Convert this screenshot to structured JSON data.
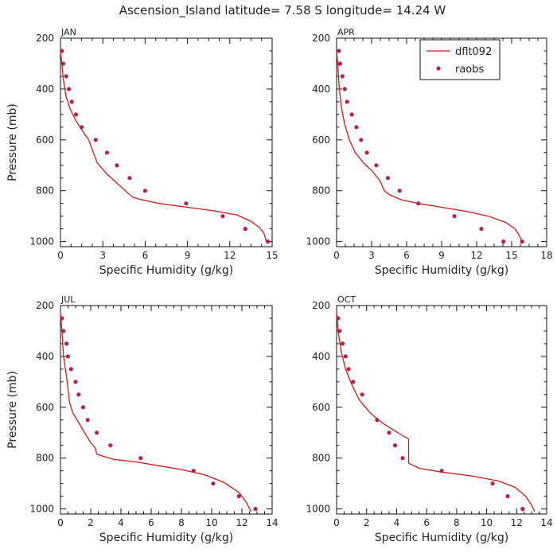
{
  "figure_title": "Ascension_Island  latitude= 7.58 S longitude= 14.24 W",
  "colors": {
    "model": "#d11a1a",
    "obs": "#b0244e",
    "axis": "#111111",
    "text": "#222222"
  },
  "legend": {
    "model_label": "dflt092",
    "obs_label": "raobs"
  },
  "chart_data": [
    {
      "type": "line",
      "title": "JAN",
      "xlabel": "Specific Humidity (g/kg)",
      "ylabel": "Pressure (mb)",
      "xlim": [
        0,
        15
      ],
      "ylim": [
        200,
        1020
      ],
      "xticks": [
        0,
        3,
        6,
        9,
        12,
        15
      ],
      "yticks": [
        200,
        400,
        600,
        800,
        1000
      ],
      "series": [
        {
          "name": "dflt092",
          "style": "line",
          "x": [
            0.0,
            0.1,
            0.2,
            0.4,
            0.7,
            1.1,
            1.5,
            2.0,
            2.6,
            3.3,
            4.0,
            4.6,
            5.1,
            5.7,
            7.0,
            9.0,
            11.0,
            12.5,
            13.5,
            14.1,
            14.4,
            14.6,
            14.8
          ],
          "y": [
            250,
            300,
            360,
            430,
            480,
            525,
            560,
            600,
            690,
            735,
            770,
            800,
            825,
            835,
            850,
            865,
            880,
            895,
            920,
            945,
            965,
            1000,
            1005
          ]
        },
        {
          "name": "raobs",
          "style": "points",
          "x": [
            0.1,
            0.2,
            0.4,
            0.6,
            0.8,
            1.1,
            1.5,
            2.5,
            3.3,
            4.0,
            4.9,
            6.0,
            8.9,
            11.5,
            13.1,
            14.7
          ],
          "y": [
            250,
            300,
            350,
            400,
            450,
            500,
            550,
            600,
            650,
            700,
            750,
            800,
            850,
            900,
            950,
            1000
          ]
        }
      ]
    },
    {
      "type": "line",
      "title": "APR",
      "xlabel": "Specific Humidity (g/kg)",
      "ylabel": "",
      "xlim": [
        0,
        18
      ],
      "ylim": [
        200,
        1020
      ],
      "xticks": [
        0,
        3,
        6,
        9,
        12,
        15,
        18
      ],
      "yticks": [
        200,
        400,
        600,
        800,
        1000
      ],
      "series": [
        {
          "name": "dflt092",
          "style": "line",
          "x": [
            0.0,
            0.1,
            0.2,
            0.4,
            0.7,
            1.1,
            1.6,
            2.3,
            3.0,
            3.7,
            4.1,
            4.5,
            5.5,
            7.0,
            9.0,
            11.0,
            13.0,
            14.5,
            15.3,
            15.7,
            15.9
          ],
          "y": [
            250,
            300,
            380,
            470,
            540,
            600,
            650,
            690,
            720,
            760,
            800,
            815,
            835,
            850,
            865,
            880,
            900,
            925,
            950,
            980,
            1005
          ]
        },
        {
          "name": "raobs",
          "style": "points",
          "x": [
            0.2,
            0.3,
            0.5,
            0.7,
            0.9,
            1.3,
            1.7,
            2.1,
            2.6,
            3.4,
            4.4,
            5.4,
            7.0,
            10.1,
            12.4,
            14.3,
            15.9
          ],
          "y": [
            250,
            300,
            350,
            400,
            450,
            500,
            550,
            600,
            650,
            700,
            750,
            800,
            850,
            900,
            950,
            1000,
            1000
          ]
        }
      ]
    },
    {
      "type": "line",
      "title": "JUL",
      "xlabel": "Specific Humidity (g/kg)",
      "ylabel": "Pressure (mb)",
      "xlim": [
        0,
        14
      ],
      "ylim": [
        200,
        1020
      ],
      "xticks": [
        0,
        2,
        4,
        6,
        8,
        10,
        12,
        14
      ],
      "yticks": [
        200,
        400,
        600,
        800,
        1000
      ],
      "series": [
        {
          "name": "dflt092",
          "style": "line",
          "x": [
            0.0,
            0.1,
            0.2,
            0.4,
            0.6,
            0.8,
            1.2,
            1.6,
            2.0,
            2.3,
            2.4,
            3.5,
            5.0,
            6.5,
            8.0,
            9.5,
            10.8,
            11.8,
            12.3,
            12.6
          ],
          "y": [
            230,
            300,
            400,
            480,
            580,
            620,
            660,
            700,
            740,
            760,
            785,
            805,
            815,
            830,
            845,
            865,
            895,
            935,
            975,
            1010
          ]
        },
        {
          "name": "raobs",
          "style": "points",
          "x": [
            0.1,
            0.2,
            0.4,
            0.5,
            0.7,
            1.0,
            1.2,
            1.5,
            1.8,
            2.4,
            3.3,
            5.3,
            8.8,
            10.1,
            11.8,
            12.9
          ],
          "y": [
            250,
            300,
            350,
            400,
            450,
            500,
            550,
            600,
            650,
            700,
            750,
            800,
            850,
            900,
            950,
            1000
          ]
        }
      ]
    },
    {
      "type": "line",
      "title": "OCT",
      "xlabel": "Specific Humidity (g/kg)",
      "ylabel": "",
      "xlim": [
        0,
        14
      ],
      "ylim": [
        200,
        1020
      ],
      "xticks": [
        0,
        2,
        4,
        6,
        8,
        10,
        12,
        14
      ],
      "yticks": [
        200,
        400,
        600,
        800,
        1000
      ],
      "series": [
        {
          "name": "dflt092",
          "style": "line",
          "x": [
            0.0,
            0.1,
            0.3,
            0.6,
            1.0,
            1.5,
            2.2,
            3.0,
            3.8,
            4.5,
            4.8,
            4.8,
            5.5,
            7.0,
            9.0,
            10.8,
            11.9,
            12.6,
            13.0,
            13.2
          ],
          "y": [
            220,
            300,
            380,
            450,
            510,
            570,
            620,
            660,
            690,
            715,
            725,
            820,
            840,
            855,
            870,
            890,
            915,
            950,
            985,
            1010
          ]
        },
        {
          "name": "raobs",
          "style": "points",
          "x": [
            0.1,
            0.2,
            0.4,
            0.6,
            0.8,
            1.1,
            1.7,
            2.7,
            3.5,
            3.9,
            4.4,
            7.0,
            10.4,
            11.4,
            12.4
          ],
          "y": [
            250,
            300,
            350,
            400,
            450,
            500,
            550,
            650,
            700,
            750,
            800,
            850,
            900,
            950,
            1000
          ]
        }
      ]
    }
  ]
}
